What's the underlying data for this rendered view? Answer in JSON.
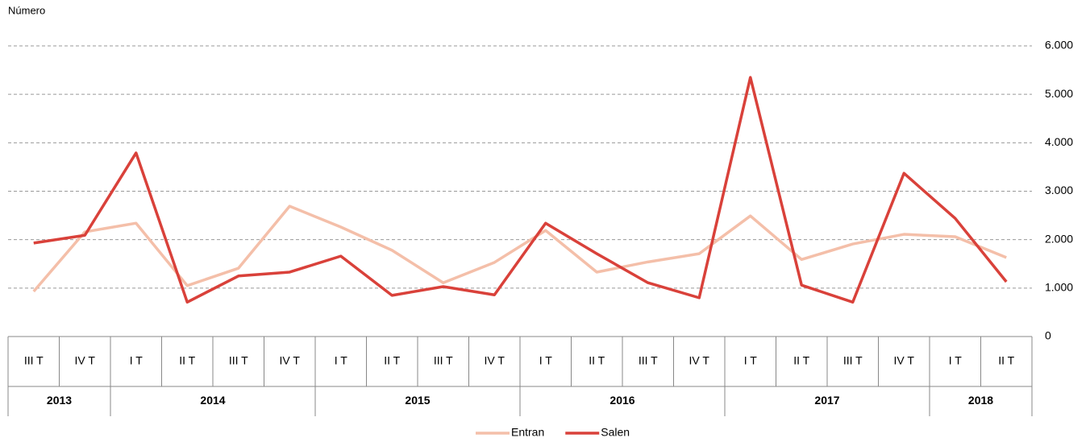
{
  "chart_data": {
    "type": "line",
    "y_axis_label": "Número",
    "categories": [
      "III T",
      "IV T",
      "I T",
      "II T",
      "III T",
      "IV T",
      "I T",
      "II T",
      "III T",
      "IV T",
      "I T",
      "II T",
      "III T",
      "IV T",
      "I T",
      "II T",
      "III T",
      "IV T",
      "I T",
      "II T"
    ],
    "category_groups": [
      {
        "label": "2013",
        "span": 2
      },
      {
        "label": "2014",
        "span": 4
      },
      {
        "label": "2015",
        "span": 4
      },
      {
        "label": "2016",
        "span": 4
      },
      {
        "label": "2017",
        "span": 4
      },
      {
        "label": "2018",
        "span": 2
      }
    ],
    "series": [
      {
        "name": "Entran",
        "color": "#f4bfa9",
        "values": [
          930,
          2160,
          2340,
          1050,
          1410,
          2690,
          2260,
          1780,
          1110,
          1530,
          2190,
          1330,
          1540,
          1710,
          2490,
          1590,
          1910,
          2110,
          2060,
          1630
        ]
      },
      {
        "name": "Salen",
        "color": "#d9413a",
        "values": [
          1930,
          2090,
          3790,
          710,
          1250,
          1330,
          1660,
          850,
          1030,
          860,
          2340,
          1710,
          1110,
          800,
          5350,
          1060,
          710,
          3370,
          2440,
          1130
        ]
      }
    ],
    "ylim": [
      0,
      6000
    ],
    "yticks": [
      0,
      {
        "value": 1000,
        "label": "1.000"
      },
      {
        "value": 2000,
        "label": "2.000"
      },
      {
        "value": 3000,
        "label": "3.000"
      },
      {
        "value": 4000,
        "label": "4.000"
      },
      {
        "value": 5000,
        "label": "5.000"
      },
      {
        "value": 6000,
        "label": "6.000"
      }
    ],
    "grid": true,
    "y_axis_side": "right",
    "legend": "bottom"
  }
}
